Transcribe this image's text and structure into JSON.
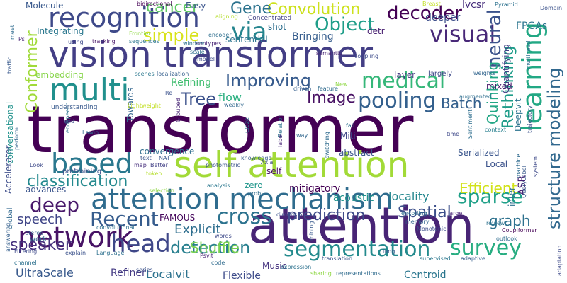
{
  "words": [
    {
      "text": "transformer",
      "color": "#440154"
    },
    {
      "text": "attention",
      "color": "#482475"
    },
    {
      "text": "vision transformer",
      "color": "#433e85"
    },
    {
      "text": "self attention",
      "color": "#a2da37"
    },
    {
      "text": "attention mechanism",
      "color": "#2f6c8e"
    },
    {
      "text": "network",
      "color": "#471365"
    },
    {
      "text": "recognition",
      "color": "#3e4989"
    },
    {
      "text": "multi",
      "color": "#21908d"
    },
    {
      "text": "based",
      "color": "#2a788e"
    },
    {
      "text": "segmentation",
      "color": "#238a8d"
    },
    {
      "text": "learning",
      "color": "#22a884"
    },
    {
      "text": "structure modeling",
      "color": "#31688e"
    },
    {
      "text": "medical",
      "color": "#35b779"
    },
    {
      "text": "visual",
      "color": "#482878"
    },
    {
      "text": "via",
      "color": "#25858e"
    },
    {
      "text": "Object",
      "color": "#1f9e89"
    },
    {
      "text": "decoder",
      "color": "#440154"
    },
    {
      "text": "neural",
      "color": "#3b528b"
    },
    {
      "text": "sparse",
      "color": "#1fa088"
    },
    {
      "text": "survey",
      "color": "#27ad81"
    },
    {
      "text": "head",
      "color": "#3f4788"
    },
    {
      "text": "cross",
      "color": "#2c728e"
    },
    {
      "text": "deep",
      "color": "#48186a"
    },
    {
      "text": "Recent",
      "color": "#365c8d"
    },
    {
      "text": "classification",
      "color": "#23898e"
    },
    {
      "text": "Improving",
      "color": "#375b8d"
    },
    {
      "text": "pooling",
      "color": "#34608d"
    },
    {
      "text": "Convolution",
      "color": "#cde11d"
    },
    {
      "text": "Gene",
      "color": "#2c738e"
    },
    {
      "text": "cancer",
      "color": "#5ec962"
    },
    {
      "text": "Tree",
      "color": "#3b518b"
    },
    {
      "text": "simple",
      "color": "#d8e219"
    },
    {
      "text": "Image",
      "color": "#471063"
    },
    {
      "text": "detection",
      "color": "#277f8e"
    },
    {
      "text": "speaker",
      "color": "#46327e"
    },
    {
      "text": "prediction",
      "color": "#3e4a89"
    },
    {
      "text": "Spatial",
      "color": "#3c4f8a"
    },
    {
      "text": "Conformer",
      "color": "#a0da39"
    },
    {
      "text": "Rethinking",
      "color": "#1e9c89"
    },
    {
      "text": "Quinking",
      "color": "#22a785"
    },
    {
      "text": "Efficient",
      "color": "#d2e21b"
    },
    {
      "text": "graph",
      "color": "#2d718e"
    },
    {
      "text": "Batch",
      "color": "#34608d"
    },
    {
      "text": "Explicit",
      "color": "#2e6e8e"
    },
    {
      "text": "Shuffle",
      "color": "#7ad151"
    },
    {
      "text": "speech",
      "color": "#404688"
    },
    {
      "text": "Refining",
      "color": "#42be71"
    },
    {
      "text": "flow",
      "color": "#29af7f"
    },
    {
      "text": "mitigatory",
      "color": "#440154"
    },
    {
      "text": "acoustic",
      "color": "#20928c"
    },
    {
      "text": "locality",
      "color": "#24878e"
    },
    {
      "text": "UltraScale",
      "color": "#38598c"
    },
    {
      "text": "Localvit",
      "color": "#2c728e"
    },
    {
      "text": "Flexible",
      "color": "#3e4c8a"
    },
    {
      "text": "Centroid",
      "color": "#2a768e"
    },
    {
      "text": "Refiner",
      "color": "#443a83"
    },
    {
      "text": "Music",
      "color": "#46337f"
    },
    {
      "text": "Bringing",
      "color": "#365d8d"
    },
    {
      "text": "Integrating",
      "color": "#2a778e"
    },
    {
      "text": "sentential",
      "color": "#2b748e"
    },
    {
      "text": "shot",
      "color": "#2e6f8e"
    },
    {
      "text": "detr",
      "color": "#482071"
    },
    {
      "text": "deeper",
      "color": "#3d4e8a"
    },
    {
      "text": "lvcsr",
      "color": "#472e7c"
    },
    {
      "text": "FPGAs",
      "color": "#2b758e"
    },
    {
      "text": "Molecule",
      "color": "#38588c"
    },
    {
      "text": "Easy",
      "color": "#3a548c"
    },
    {
      "text": "Concentrated",
      "color": "#424186"
    },
    {
      "text": "embedding",
      "color": "#86d549"
    },
    {
      "text": "convergence",
      "color": "#2e6d8e"
    },
    {
      "text": "Towards",
      "color": "#32658e"
    },
    {
      "text": "Serialized",
      "color": "#39558c"
    },
    {
      "text": "Local",
      "color": "#3b528b"
    },
    {
      "text": "FAMOUS",
      "color": "#46085c"
    },
    {
      "text": "Miti",
      "color": "#3f4889"
    },
    {
      "text": "abstract",
      "color": "#3a538b"
    },
    {
      "text": "self",
      "color": "#460b5e"
    },
    {
      "text": "zero",
      "color": "#1f968b"
    },
    {
      "text": "advances",
      "color": "#3a548c"
    },
    {
      "text": "ASR",
      "color": "#482173"
    },
    {
      "text": "inter",
      "color": "#2c718e"
    },
    {
      "text": "Quantifying",
      "color": "#424186"
    },
    {
      "text": "Deepvit",
      "color": "#2c738e"
    },
    {
      "text": "Accelerator",
      "color": "#3d4d8a"
    },
    {
      "text": "global",
      "color": "#31688e"
    },
    {
      "text": "pretraining",
      "color": "#3b528b"
    },
    {
      "text": "mixed",
      "color": "#481a6c"
    },
    {
      "text": "layer",
      "color": "#453781"
    },
    {
      "text": "largely",
      "color": "#3e4a89"
    },
    {
      "text": "conversational",
      "color": "#20928c"
    },
    {
      "text": "understanding",
      "color": "#38598c"
    },
    {
      "text": "localization",
      "color": "#355f8d"
    },
    {
      "text": "tracking",
      "color": "#481467"
    },
    {
      "text": "sequences",
      "color": "#2b758e"
    },
    {
      "text": "semantic",
      "color": "#482475"
    },
    {
      "text": "coupling",
      "color": "#3e4c8a"
    },
    {
      "text": "window",
      "color": "#2d708e"
    },
    {
      "text": "scale",
      "color": "#2e6e8e"
    },
    {
      "text": "model",
      "color": "#3e4a89"
    },
    {
      "text": "scenes",
      "color": "#2a778e"
    },
    {
      "text": "weakly",
      "color": "#31688e"
    },
    {
      "text": "driven",
      "color": "#355f8d"
    },
    {
      "text": "feature",
      "color": "#2f6b8e"
    },
    {
      "text": "augmented",
      "color": "#2e6e8e"
    },
    {
      "text": "weights",
      "color": "#32658e"
    },
    {
      "text": "context",
      "color": "#277f8e"
    },
    {
      "text": "time",
      "color": "#3e4989"
    },
    {
      "text": "way",
      "color": "#31678e"
    },
    {
      "text": "fail",
      "color": "#2d708e"
    },
    {
      "text": "photometric",
      "color": "#3b528b"
    },
    {
      "text": "knowledge",
      "color": "#375b8d"
    },
    {
      "text": "Cloze",
      "color": "#2c718e"
    },
    {
      "text": "switching",
      "color": "#2f6b8e"
    },
    {
      "text": "Lightweight",
      "color": "#c2df23"
    },
    {
      "text": "Grouped",
      "color": "#482576"
    },
    {
      "text": "Axial",
      "color": "#3f4788"
    },
    {
      "text": "analysis",
      "color": "#2a778e"
    },
    {
      "text": "prob",
      "color": "#2f6c8e"
    },
    {
      "text": "text",
      "color": "#3b528b"
    },
    {
      "text": "map",
      "color": "#472f7d"
    },
    {
      "text": "Better",
      "color": "#424086"
    },
    {
      "text": "token",
      "color": "#b5de2b"
    },
    {
      "text": "selection",
      "color": "#8fd744"
    },
    {
      "text": "NAT",
      "color": "#38588c"
    },
    {
      "text": "dimension",
      "color": "#3b528b"
    },
    {
      "text": "encoding",
      "color": "#2e6e8e"
    },
    {
      "text": "memory",
      "color": "#32658e"
    },
    {
      "text": "Monotonic",
      "color": "#3d4d8a"
    },
    {
      "text": "large",
      "color": "#482475"
    },
    {
      "text": "review",
      "color": "#2c718e"
    },
    {
      "text": "Couplformer",
      "color": "#440154"
    },
    {
      "text": "outlook",
      "color": "#2f6c8e"
    },
    {
      "text": "adaptation",
      "color": "#3e4a89"
    },
    {
      "text": "adaptive",
      "color": "#355f8d"
    },
    {
      "text": "supervised",
      "color": "#2a778e"
    },
    {
      "text": "translation",
      "color": "#3b528b"
    },
    {
      "text": "lung",
      "color": "#38598c"
    },
    {
      "text": "representations",
      "color": "#2f6b8e"
    },
    {
      "text": "sharing",
      "color": "#8fd744"
    },
    {
      "text": "expression",
      "color": "#2c718e"
    },
    {
      "text": "Psvit",
      "color": "#482475"
    },
    {
      "text": "words",
      "color": "#3e4a89"
    },
    {
      "text": "Language",
      "color": "#2d708e"
    },
    {
      "text": "explain",
      "color": "#3b528b"
    },
    {
      "text": "convolutional",
      "color": "#2e6e8e"
    },
    {
      "text": "stereo",
      "color": "#355f8d"
    },
    {
      "text": "work",
      "color": "#32658e"
    },
    {
      "text": "Filtering",
      "color": "#3e4989"
    },
    {
      "text": "channel",
      "color": "#2c718e"
    },
    {
      "text": "series",
      "color": "#3b528b"
    },
    {
      "text": "code",
      "color": "#2f6b8e"
    },
    {
      "text": "mining",
      "color": "#38598c"
    },
    {
      "text": "subtypes",
      "color": "#482475"
    },
    {
      "text": "Breast",
      "color": "#c2df23"
    },
    {
      "text": "Pyramid",
      "color": "#2c718e"
    },
    {
      "text": "Domain",
      "color": "#3b528b"
    },
    {
      "text": "bidirectional",
      "color": "#440154"
    },
    {
      "text": "meet",
      "color": "#2f6b8e"
    },
    {
      "text": "Ps",
      "color": "#482475"
    },
    {
      "text": "using",
      "color": "#3e4a89"
    },
    {
      "text": "Frontier",
      "color": "#8fd744"
    },
    {
      "text": "encoder",
      "color": "#2e6e8e"
    },
    {
      "text": "aligning",
      "color": "#b5de2b"
    },
    {
      "text": "traffic",
      "color": "#38598c"
    },
    {
      "text": "end",
      "color": "#3b528b"
    },
    {
      "text": "endspeech",
      "color": "#2c718e"
    },
    {
      "text": "Lawin",
      "color": "#2f6b8e"
    },
    {
      "text": "perform",
      "color": "#32658e"
    },
    {
      "text": "Look",
      "color": "#3e4a89"
    },
    {
      "text": "answering",
      "color": "#355f8d"
    },
    {
      "text": "Re",
      "color": "#3b528b"
    },
    {
      "text": "New",
      "color": "#8fd744"
    },
    {
      "text": "Relation",
      "color": "#2c718e"
    },
    {
      "text": "label",
      "color": "#482475"
    },
    {
      "text": "Sentiment",
      "color": "#2e6e8e"
    },
    {
      "text": "trajectory",
      "color": "#3b528b"
    },
    {
      "text": "machine",
      "color": "#2f6b8e"
    },
    {
      "text": "system",
      "color": "#3e4a89"
    },
    {
      "text": "QueryLabel",
      "color": "#38598c"
    },
    {
      "text": "multihead",
      "color": "#2c718e"
    }
  ]
}
